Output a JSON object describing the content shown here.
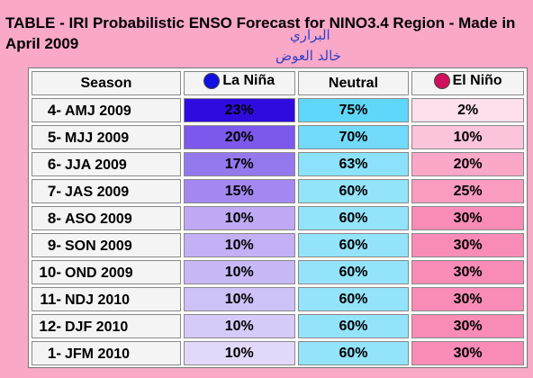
{
  "title": "TABLE - IRI Probabilistic ENSO Forecast for NINO3.4 Region - Made in April 2009",
  "arabic_line1": "البراري",
  "arabic_line2": "خالد العوض",
  "headers": {
    "season": "Season",
    "la_nina": "La Niña",
    "neutral": "Neutral",
    "el_nino": "El Niño"
  },
  "colors": {
    "la_nina_dot": "#1010e0",
    "el_nino_dot": "#d0105a",
    "background": "#f9a8c8"
  },
  "rows": [
    {
      "num": "4-",
      "season": "AMJ 2009",
      "la_nina": "23%",
      "neutral": "75%",
      "el_nino": "2%",
      "c_nina": "#2f0be0",
      "c_neutral": "#5fd7fb",
      "c_nino": "#fde0ec"
    },
    {
      "num": "5-",
      "season": "MJJ 2009",
      "la_nina": "20%",
      "neutral": "70%",
      "el_nino": "10%",
      "c_nina": "#7c58ec",
      "c_neutral": "#72dafb",
      "c_nino": "#fcc4da"
    },
    {
      "num": "6-",
      "season": "JJA 2009",
      "la_nina": "17%",
      "neutral": "63%",
      "el_nino": "20%",
      "c_nina": "#9479ee",
      "c_neutral": "#8ce2fb",
      "c_nino": "#fba8c8"
    },
    {
      "num": "7-",
      "season": "JAS 2009",
      "la_nina": "15%",
      "neutral": "60%",
      "el_nino": "25%",
      "c_nina": "#a288f0",
      "c_neutral": "#93e4fb",
      "c_nino": "#fa9cbf"
    },
    {
      "num": "8-",
      "season": "ASO 2009",
      "la_nina": "10%",
      "neutral": "60%",
      "el_nino": "30%",
      "c_nina": "#bfa9f4",
      "c_neutral": "#93e4fb",
      "c_nino": "#f88cb6"
    },
    {
      "num": "9-",
      "season": "SON 2009",
      "la_nina": "10%",
      "neutral": "60%",
      "el_nino": "30%",
      "c_nina": "#c3b0f5",
      "c_neutral": "#93e4fb",
      "c_nino": "#f88cb6"
    },
    {
      "num": "10-",
      "season": "OND 2009",
      "la_nina": "10%",
      "neutral": "60%",
      "el_nino": "30%",
      "c_nina": "#c8b9f6",
      "c_neutral": "#93e4fb",
      "c_nino": "#f88cb6"
    },
    {
      "num": "11-",
      "season": "NDJ 2010",
      "la_nina": "10%",
      "neutral": "60%",
      "el_nino": "30%",
      "c_nina": "#cec1f7",
      "c_neutral": "#93e4fb",
      "c_nino": "#f88cb6"
    },
    {
      "num": "12-",
      "season": "DJF 2010",
      "la_nina": "10%",
      "neutral": "60%",
      "el_nino": "30%",
      "c_nina": "#d6cbf8",
      "c_neutral": "#93e4fb",
      "c_nino": "#f88cb6"
    },
    {
      "num": "1-",
      "season": "JFM 2010",
      "la_nina": "10%",
      "neutral": "60%",
      "el_nino": "30%",
      "c_nina": "#e2d9fa",
      "c_neutral": "#93e4fb",
      "c_nino": "#f88cb6"
    }
  ]
}
